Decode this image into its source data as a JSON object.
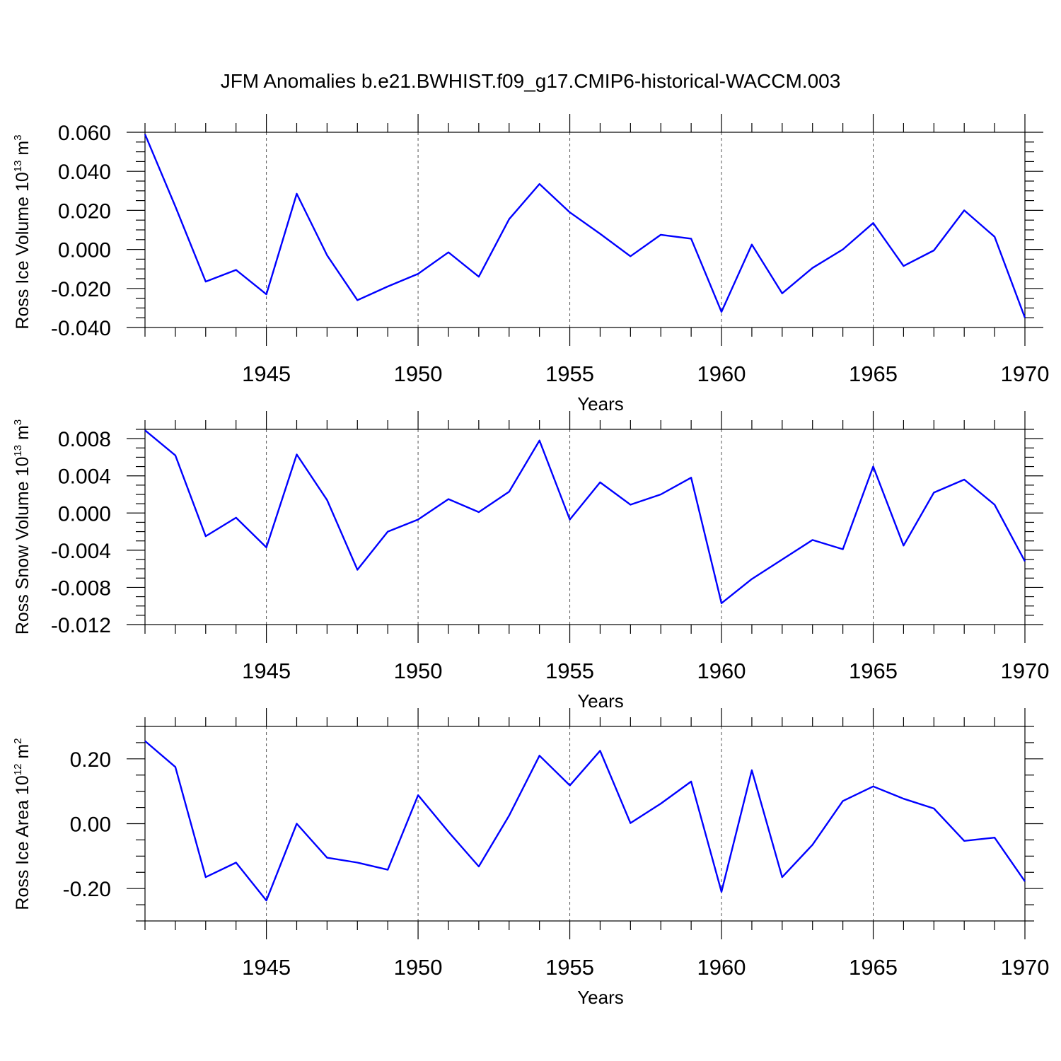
{
  "title": "JFM Anomalies b.e21.BWHIST.f09_g17.CMIP6-historical-WACCM.003",
  "colors": {
    "series": "#0000ff",
    "axes": "#000000",
    "grid": "#555555"
  },
  "chart_data": [
    {
      "type": "line",
      "xlabel": "Years",
      "ylabel": {
        "text": "Ross Ice Volume 10",
        "exponent": "13",
        "unit": " m",
        "unit_exponent": "3"
      },
      "xlim": [
        1941,
        1970
      ],
      "ylim": [
        -0.04,
        0.06
      ],
      "x_ticks": [
        1945,
        1950,
        1955,
        1960,
        1965,
        1970
      ],
      "y_ticks": [
        -0.04,
        -0.02,
        0.0,
        0.02,
        0.04,
        0.06
      ],
      "y_tick_labels": [
        "-0.040",
        "-0.020",
        "0.000",
        "0.020",
        "0.040",
        "0.060"
      ],
      "y_minor_step": 0.005,
      "grid": "dashed vertical at major x ticks",
      "x": [
        1941,
        1942,
        1943,
        1944,
        1945,
        1946,
        1947,
        1948,
        1949,
        1950,
        1951,
        1952,
        1953,
        1954,
        1955,
        1956,
        1957,
        1958,
        1959,
        1960,
        1961,
        1962,
        1963,
        1964,
        1965,
        1966,
        1967,
        1968,
        1969,
        1970
      ],
      "values": [
        0.059,
        0.022,
        -0.0165,
        -0.0105,
        -0.023,
        0.0285,
        -0.003,
        -0.026,
        -0.019,
        -0.0125,
        -0.0015,
        -0.014,
        0.0155,
        0.0335,
        0.019,
        0.008,
        -0.0035,
        0.0075,
        0.0055,
        -0.032,
        0.0025,
        -0.0225,
        -0.0095,
        0.0,
        0.0135,
        -0.0085,
        -0.0005,
        0.02,
        0.0065,
        -0.035
      ]
    },
    {
      "type": "line",
      "xlabel": "Years",
      "ylabel": {
        "text": "Ross Snow Volume 10",
        "exponent": "13",
        "unit": " m",
        "unit_exponent": "3"
      },
      "xlim": [
        1941,
        1970
      ],
      "ylim": [
        -0.012,
        0.009
      ],
      "x_ticks": [
        1945,
        1950,
        1955,
        1960,
        1965,
        1970
      ],
      "y_ticks": [
        -0.012,
        -0.008,
        -0.004,
        0.0,
        0.004,
        0.008
      ],
      "y_tick_labels": [
        "-0.012",
        "-0.008",
        "-0.004",
        "0.000",
        "0.004",
        "0.008"
      ],
      "y_minor_step": 0.001,
      "grid": "dashed vertical at major x ticks",
      "x": [
        1941,
        1942,
        1943,
        1944,
        1945,
        1946,
        1947,
        1948,
        1949,
        1950,
        1951,
        1952,
        1953,
        1954,
        1955,
        1956,
        1957,
        1958,
        1959,
        1960,
        1961,
        1962,
        1963,
        1964,
        1965,
        1966,
        1967,
        1968,
        1969,
        1970
      ],
      "values": [
        0.0089,
        0.0062,
        -0.0025,
        -0.0005,
        -0.0037,
        0.0063,
        0.0014,
        -0.0061,
        -0.002,
        -0.0007,
        0.0015,
        0.0001,
        0.0023,
        0.0078,
        -0.0007,
        0.0033,
        0.0009,
        0.002,
        0.0038,
        -0.0097,
        -0.0071,
        -0.005,
        -0.0029,
        -0.0039,
        0.005,
        -0.0035,
        0.0022,
        0.0036,
        0.0009,
        -0.0052
      ]
    },
    {
      "type": "line",
      "xlabel": "Years",
      "ylabel": {
        "text": "Ross Ice Area 10",
        "exponent": "12",
        "unit": " m",
        "unit_exponent": "2"
      },
      "xlim": [
        1941,
        1970
      ],
      "ylim": [
        -0.3,
        0.3
      ],
      "x_ticks": [
        1945,
        1950,
        1955,
        1960,
        1965,
        1970
      ],
      "y_ticks": [
        -0.2,
        0.0,
        0.2
      ],
      "y_tick_labels": [
        "-0.20",
        "0.00",
        "0.20"
      ],
      "y_minor_step": 0.05,
      "grid": "dashed vertical at major x ticks",
      "x": [
        1941,
        1942,
        1943,
        1944,
        1945,
        1946,
        1947,
        1948,
        1949,
        1950,
        1951,
        1952,
        1953,
        1954,
        1955,
        1956,
        1957,
        1958,
        1959,
        1960,
        1961,
        1962,
        1963,
        1964,
        1965,
        1966,
        1967,
        1968,
        1969,
        1970
      ],
      "values": [
        0.255,
        0.175,
        -0.165,
        -0.12,
        -0.237,
        0.0,
        -0.105,
        -0.12,
        -0.142,
        0.088,
        -0.025,
        -0.132,
        0.025,
        0.21,
        0.118,
        0.225,
        0.002,
        0.062,
        0.13,
        -0.21,
        0.165,
        -0.165,
        -0.065,
        0.07,
        0.115,
        0.077,
        0.047,
        -0.053,
        -0.043,
        -0.178
      ]
    }
  ]
}
